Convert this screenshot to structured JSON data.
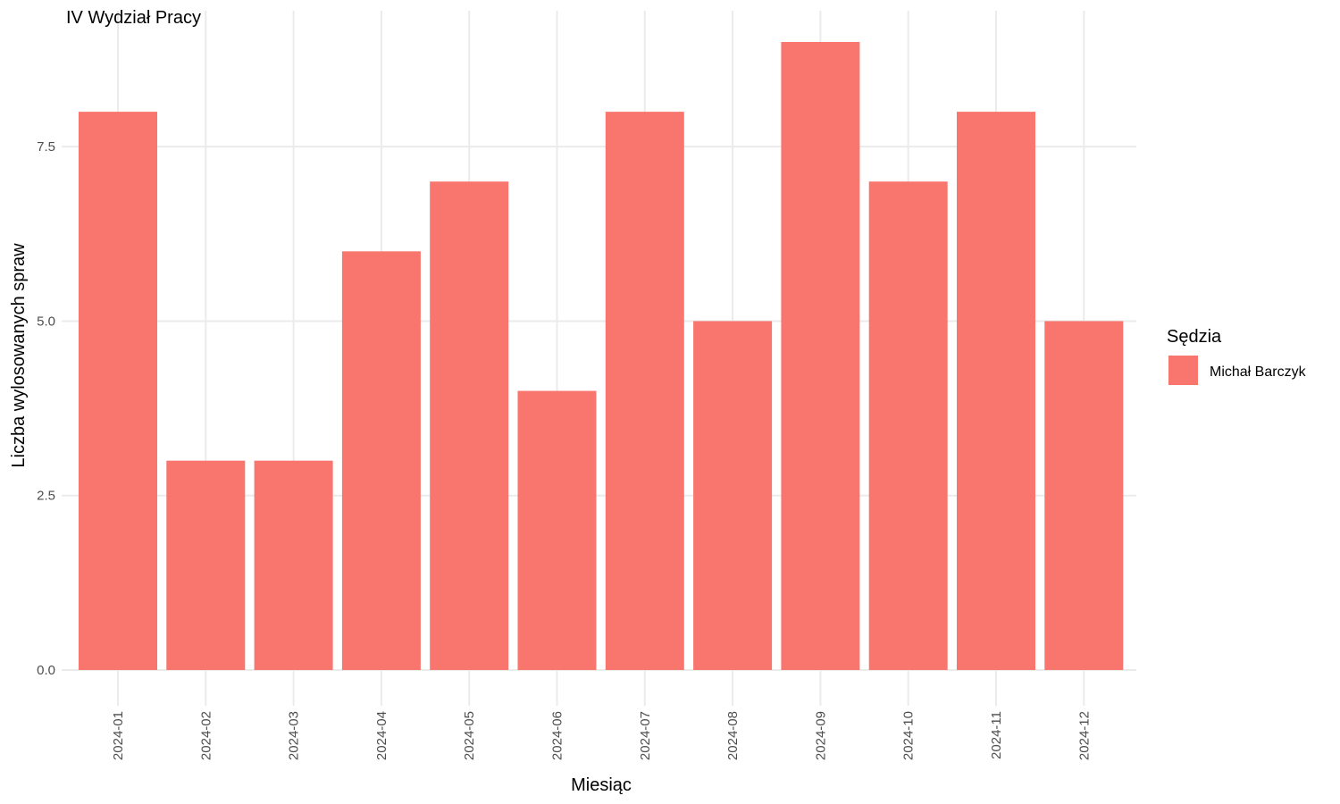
{
  "chart_data": {
    "type": "bar",
    "title": "IV Wydział Pracy",
    "xlabel": "Miesiąc",
    "ylabel": "Liczba wylosowanych spraw",
    "categories": [
      "2024-01",
      "2024-02",
      "2024-03",
      "2024-04",
      "2024-05",
      "2024-06",
      "2024-07",
      "2024-08",
      "2024-09",
      "2024-10",
      "2024-11",
      "2024-12"
    ],
    "series": [
      {
        "name": "Michał Barczyk",
        "values": [
          8,
          3,
          3,
          6,
          7,
          4,
          8,
          5,
          9,
          7,
          8,
          5
        ],
        "color": "#F8766D"
      }
    ],
    "ylim": [
      0,
      9.45
    ],
    "yticks": [
      0,
      2.5,
      5,
      7.5
    ],
    "ytick_labels": [
      "0.0",
      "2.5",
      "5.0",
      "7.5"
    ],
    "grid": true,
    "x_tick_rotation": "vertical",
    "legend": {
      "title": "Sędzia",
      "placement": "right"
    }
  }
}
